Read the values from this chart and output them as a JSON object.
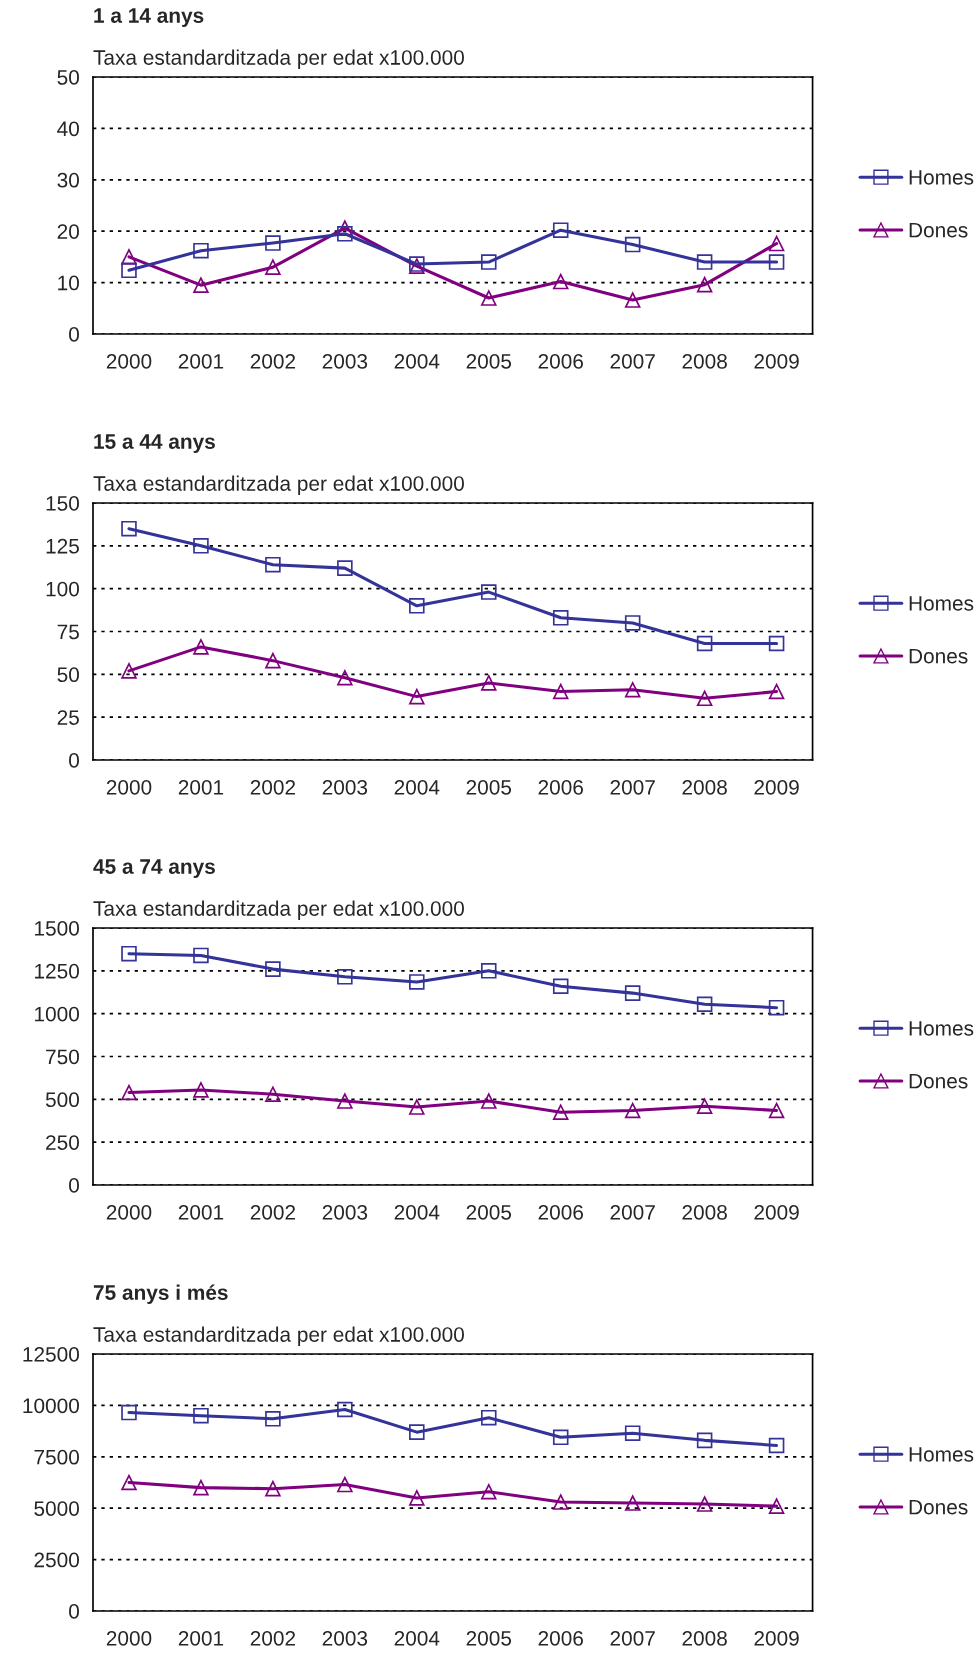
{
  "chart_data": [
    {
      "type": "line",
      "title": "1 a 14 anys",
      "subtitle": "Taxa estandarditzada per edat x100.000",
      "categories": [
        "2000",
        "2001",
        "2002",
        "2003",
        "2004",
        "2005",
        "2006",
        "2007",
        "2008",
        "2009"
      ],
      "ylim": [
        0,
        50
      ],
      "yticks": [
        0,
        10,
        20,
        30,
        40,
        50
      ],
      "grid": "y",
      "legend": "right",
      "series": [
        {
          "name": "Homes",
          "color": "#333399",
          "marker": "square",
          "values": [
            12.4,
            16.2,
            17.7,
            19.5,
            13.6,
            14,
            20.2,
            17.4,
            14,
            14
          ]
        },
        {
          "name": "Dones",
          "color": "#800080",
          "marker": "triangle",
          "values": [
            15,
            9.5,
            13,
            20.6,
            13.2,
            7,
            10.2,
            6.6,
            9.6,
            17.6
          ]
        }
      ]
    },
    {
      "type": "line",
      "title": "15 a 44 anys",
      "subtitle": "Taxa estandarditzada per edat x100.000",
      "categories": [
        "2000",
        "2001",
        "2002",
        "2003",
        "2004",
        "2005",
        "2006",
        "2007",
        "2008",
        "2009"
      ],
      "ylim": [
        0,
        150
      ],
      "yticks": [
        0,
        25,
        50,
        75,
        100,
        125,
        150
      ],
      "grid": "y",
      "legend": "right",
      "series": [
        {
          "name": "Homes",
          "color": "#333399",
          "marker": "square",
          "values": [
            135,
            125,
            114,
            112,
            90,
            98,
            83,
            80,
            68,
            68
          ]
        },
        {
          "name": "Dones",
          "color": "#800080",
          "marker": "triangle",
          "values": [
            52,
            66,
            58,
            48,
            37,
            45,
            40,
            41,
            36,
            40
          ]
        }
      ]
    },
    {
      "type": "line",
      "title": "45 a 74 anys",
      "subtitle": "Taxa estandarditzada per edat x100.000",
      "categories": [
        "2000",
        "2001",
        "2002",
        "2003",
        "2004",
        "2005",
        "2006",
        "2007",
        "2008",
        "2009"
      ],
      "ylim": [
        0,
        1500
      ],
      "yticks": [
        0,
        250,
        500,
        750,
        1000,
        1250,
        1500
      ],
      "grid": "y",
      "legend": "right",
      "series": [
        {
          "name": "Homes",
          "color": "#333399",
          "marker": "square",
          "values": [
            1350,
            1340,
            1260,
            1215,
            1185,
            1250,
            1160,
            1120,
            1055,
            1035
          ]
        },
        {
          "name": "Dones",
          "color": "#800080",
          "marker": "triangle",
          "values": [
            540,
            555,
            530,
            490,
            455,
            490,
            425,
            435,
            460,
            435
          ]
        }
      ]
    },
    {
      "type": "line",
      "title": "75 anys i més",
      "subtitle": "Taxa estandarditzada per edat x100.000",
      "categories": [
        "2000",
        "2001",
        "2002",
        "2003",
        "2004",
        "2005",
        "2006",
        "2007",
        "2008",
        "2009"
      ],
      "ylim": [
        0,
        12500
      ],
      "yticks": [
        0,
        2500,
        5000,
        7500,
        10000,
        12500
      ],
      "grid": "y",
      "legend": "right",
      "series": [
        {
          "name": "Homes",
          "color": "#333399",
          "marker": "square",
          "values": [
            9650,
            9500,
            9350,
            9800,
            8700,
            9400,
            8450,
            8650,
            8300,
            8050
          ]
        },
        {
          "name": "Dones",
          "color": "#800080",
          "marker": "triangle",
          "values": [
            6250,
            6000,
            5950,
            6150,
            5500,
            5800,
            5300,
            5250,
            5200,
            5100
          ]
        }
      ]
    }
  ]
}
